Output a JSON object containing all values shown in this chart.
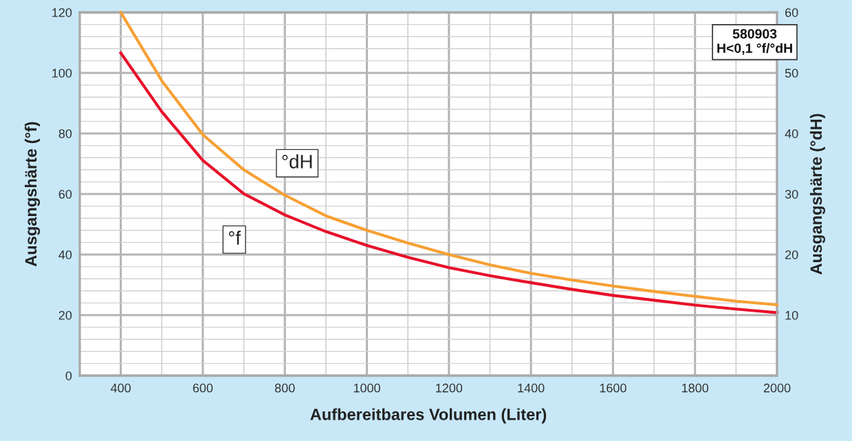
{
  "chart_data": {
    "type": "line",
    "xlabel": "Aufbereitbares Volumen (Liter)",
    "ylabel": "Ausgangshärte (°f)",
    "y2label": "Ausgangshärte (°dH)",
    "x": [
      400,
      500,
      600,
      700,
      800,
      900,
      1000,
      1100,
      1200,
      1300,
      1400,
      1500,
      1600,
      1700,
      1800,
      1900,
      2000
    ],
    "series": [
      {
        "name": "°f",
        "color": "#e8102a",
        "values": [
          106.6,
          87.2,
          71.1,
          60.1,
          53.1,
          47.6,
          43.0,
          39.1,
          35.7,
          33.0,
          30.7,
          28.5,
          26.5,
          24.9,
          23.3,
          22.0,
          20.8
        ]
      },
      {
        "name": "°dH",
        "color": "#f7a033",
        "axis": "y2",
        "values": [
          60,
          48.7,
          39.8,
          34.0,
          29.8,
          26.4,
          24.0,
          21.9,
          20.0,
          18.3,
          16.9,
          15.8,
          14.8,
          13.9,
          13.1,
          12.3,
          11.7
        ]
      }
    ],
    "xlim": [
      300,
      2000
    ],
    "xticks": [
      400,
      600,
      800,
      1000,
      1200,
      1400,
      1600,
      1800,
      2000
    ],
    "ylim": [
      0,
      120
    ],
    "yticks": [
      0,
      20,
      40,
      60,
      80,
      100,
      120
    ],
    "y2lim": [
      0,
      60
    ],
    "y2ticks": [
      10,
      20,
      30,
      40,
      50,
      60
    ],
    "grid": true,
    "line_style": "solid",
    "marker": "none",
    "annotations": [
      "580903",
      "H<0,1 °f/°dH"
    ]
  }
}
